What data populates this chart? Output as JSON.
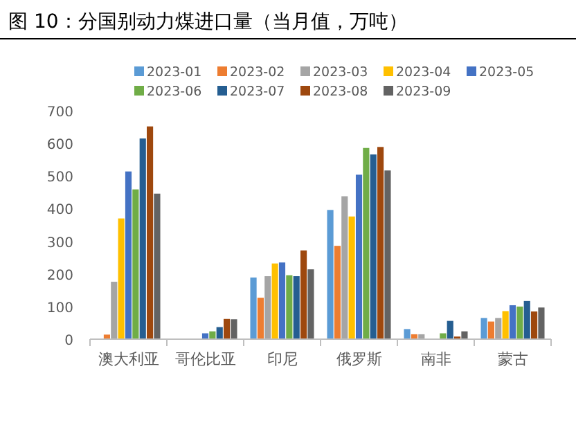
{
  "chart_data": {
    "type": "bar",
    "title": "图 10：分国别动力煤进口量（当月值，万吨）",
    "categories": [
      "澳大利亚",
      "哥伦比亚",
      "印尼",
      "俄罗斯",
      "南非",
      "蒙古"
    ],
    "series": [
      {
        "name": "2023-01",
        "color": "#5b9bd5",
        "values": [
          null,
          null,
          189,
          396,
          31,
          65
        ]
      },
      {
        "name": "2023-02",
        "color": "#ed7d31",
        "values": [
          14,
          null,
          127,
          286,
          15,
          54
        ]
      },
      {
        "name": "2023-03",
        "color": "#a5a5a5",
        "values": [
          176,
          null,
          193,
          438,
          15,
          65
        ]
      },
      {
        "name": "2023-04",
        "color": "#ffc000",
        "values": [
          370,
          null,
          232,
          376,
          null,
          86
        ]
      },
      {
        "name": "2023-05",
        "color": "#4472c4",
        "values": [
          514,
          18,
          235,
          504,
          null,
          104
        ]
      },
      {
        "name": "2023-06",
        "color": "#70ad47",
        "values": [
          459,
          24,
          196,
          586,
          18,
          100
        ]
      },
      {
        "name": "2023-07",
        "color": "#255e91",
        "values": [
          615,
          37,
          193,
          566,
          56,
          117
        ]
      },
      {
        "name": "2023-08",
        "color": "#9e480e",
        "values": [
          652,
          62,
          272,
          589,
          8,
          85
        ]
      },
      {
        "name": "2023-09",
        "color": "#636363",
        "values": [
          446,
          61,
          214,
          517,
          24,
          97
        ]
      }
    ],
    "ylim": [
      0,
      700
    ],
    "yticks": [
      0,
      100,
      200,
      300,
      400,
      500,
      600,
      700
    ],
    "legend": "top"
  }
}
